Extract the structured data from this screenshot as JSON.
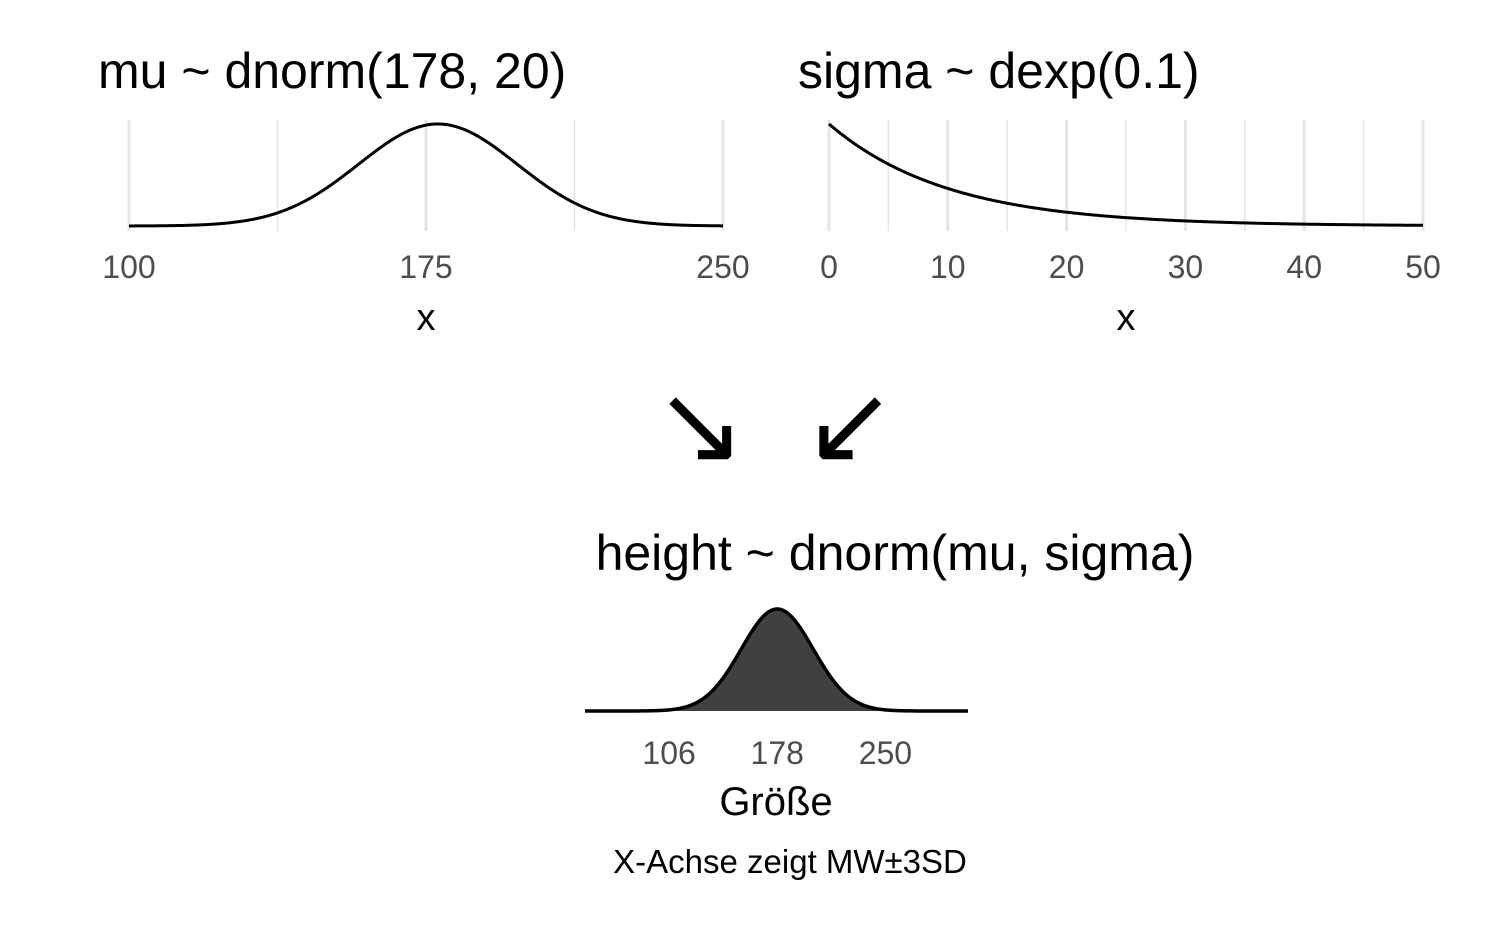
{
  "chart_data": [
    {
      "type": "line",
      "title": "mu ~ dnorm(178, 20)",
      "distribution": "normal",
      "params": {
        "mean": 178,
        "sd": 20
      },
      "xlabel": "x",
      "ylabel": "",
      "xlim": [
        100,
        250
      ],
      "x_ticks": [
        100,
        175,
        250
      ],
      "x_tick_labels": [
        "100",
        "175",
        "250"
      ],
      "minor_gridlines": [
        137.5,
        212.5
      ],
      "y_axis_shown": false,
      "grid": "vertical"
    },
    {
      "type": "line",
      "title": "sigma ~ dexp(0.1)",
      "distribution": "exponential",
      "params": {
        "rate": 0.1
      },
      "xlabel": "x",
      "ylabel": "",
      "xlim": [
        0,
        50
      ],
      "x_ticks": [
        0,
        10,
        20,
        30,
        40,
        50
      ],
      "x_tick_labels": [
        "0",
        "10",
        "20",
        "30",
        "40",
        "50"
      ],
      "minor_gridlines": [
        5,
        15,
        25,
        35,
        45
      ],
      "y_axis_shown": false,
      "grid": "vertical"
    },
    {
      "type": "area",
      "title": "height ~ dnorm(mu, sigma)",
      "distribution": "normal",
      "params": {
        "mean": 178,
        "sd": 24
      },
      "xlabel": "Größe",
      "ylabel": "",
      "xlim": [
        50,
        305
      ],
      "x_ticks": [
        106,
        178,
        250
      ],
      "x_tick_labels": [
        "106",
        "178",
        "250"
      ],
      "shaded_range": [
        106,
        250
      ],
      "fill_color": "#404040",
      "y_axis_shown": false,
      "grid": "none",
      "caption": "X-Achse zeigt MW±3SD"
    }
  ],
  "arrows": {
    "left_glyph": "↘",
    "right_glyph": "↙",
    "left_icon": "arrow-down-right-icon",
    "right_icon": "arrow-down-left-icon"
  },
  "colors": {
    "line": "#000000",
    "grid": "#e5e5e5",
    "tick_text": "#4d4d4d",
    "fill": "#404040"
  }
}
